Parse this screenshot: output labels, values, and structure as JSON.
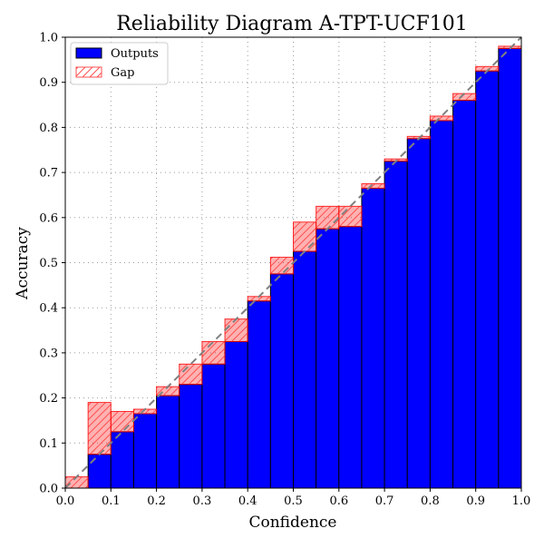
{
  "chart_data": {
    "type": "bar",
    "title": "Reliability Diagram A-TPT-UCF101",
    "xlabel": "Confidence",
    "ylabel": "Accuracy",
    "xlim": [
      0.0,
      1.0
    ],
    "ylim": [
      0.0,
      1.0
    ],
    "xticks": [
      "0.0",
      "0.1",
      "0.2",
      "0.3",
      "0.4",
      "0.5",
      "0.6",
      "0.7",
      "0.8",
      "0.9",
      "1.0"
    ],
    "yticks": [
      "0.0",
      "0.1",
      "0.2",
      "0.3",
      "0.4",
      "0.5",
      "0.6",
      "0.7",
      "0.8",
      "0.9",
      "1.0"
    ],
    "grid": true,
    "legend_position": "top-left",
    "bin_width": 0.05,
    "bin_centers": [
      0.025,
      0.075,
      0.125,
      0.175,
      0.225,
      0.275,
      0.325,
      0.375,
      0.425,
      0.475,
      0.525,
      0.575,
      0.625,
      0.675,
      0.725,
      0.775,
      0.825,
      0.875,
      0.925,
      0.975
    ],
    "series": [
      {
        "name": "Outputs",
        "color": "#0000ff",
        "values": [
          0.0,
          0.075,
          0.125,
          0.165,
          0.205,
          0.23,
          0.275,
          0.325,
          0.415,
          0.475,
          0.525,
          0.575,
          0.58,
          0.665,
          0.725,
          0.775,
          0.815,
          0.86,
          0.925,
          0.975
        ]
      },
      {
        "name": "Gap",
        "color": "#ff0000",
        "values": [
          0.025,
          0.19,
          0.17,
          0.175,
          0.225,
          0.275,
          0.325,
          0.375,
          0.425,
          0.512,
          0.59,
          0.625,
          0.625,
          0.675,
          0.73,
          0.78,
          0.825,
          0.875,
          0.935,
          0.98
        ]
      }
    ],
    "reference_line": {
      "style": "dashed",
      "color": "#808080",
      "from": [
        0,
        0
      ],
      "to": [
        1,
        1
      ]
    }
  }
}
